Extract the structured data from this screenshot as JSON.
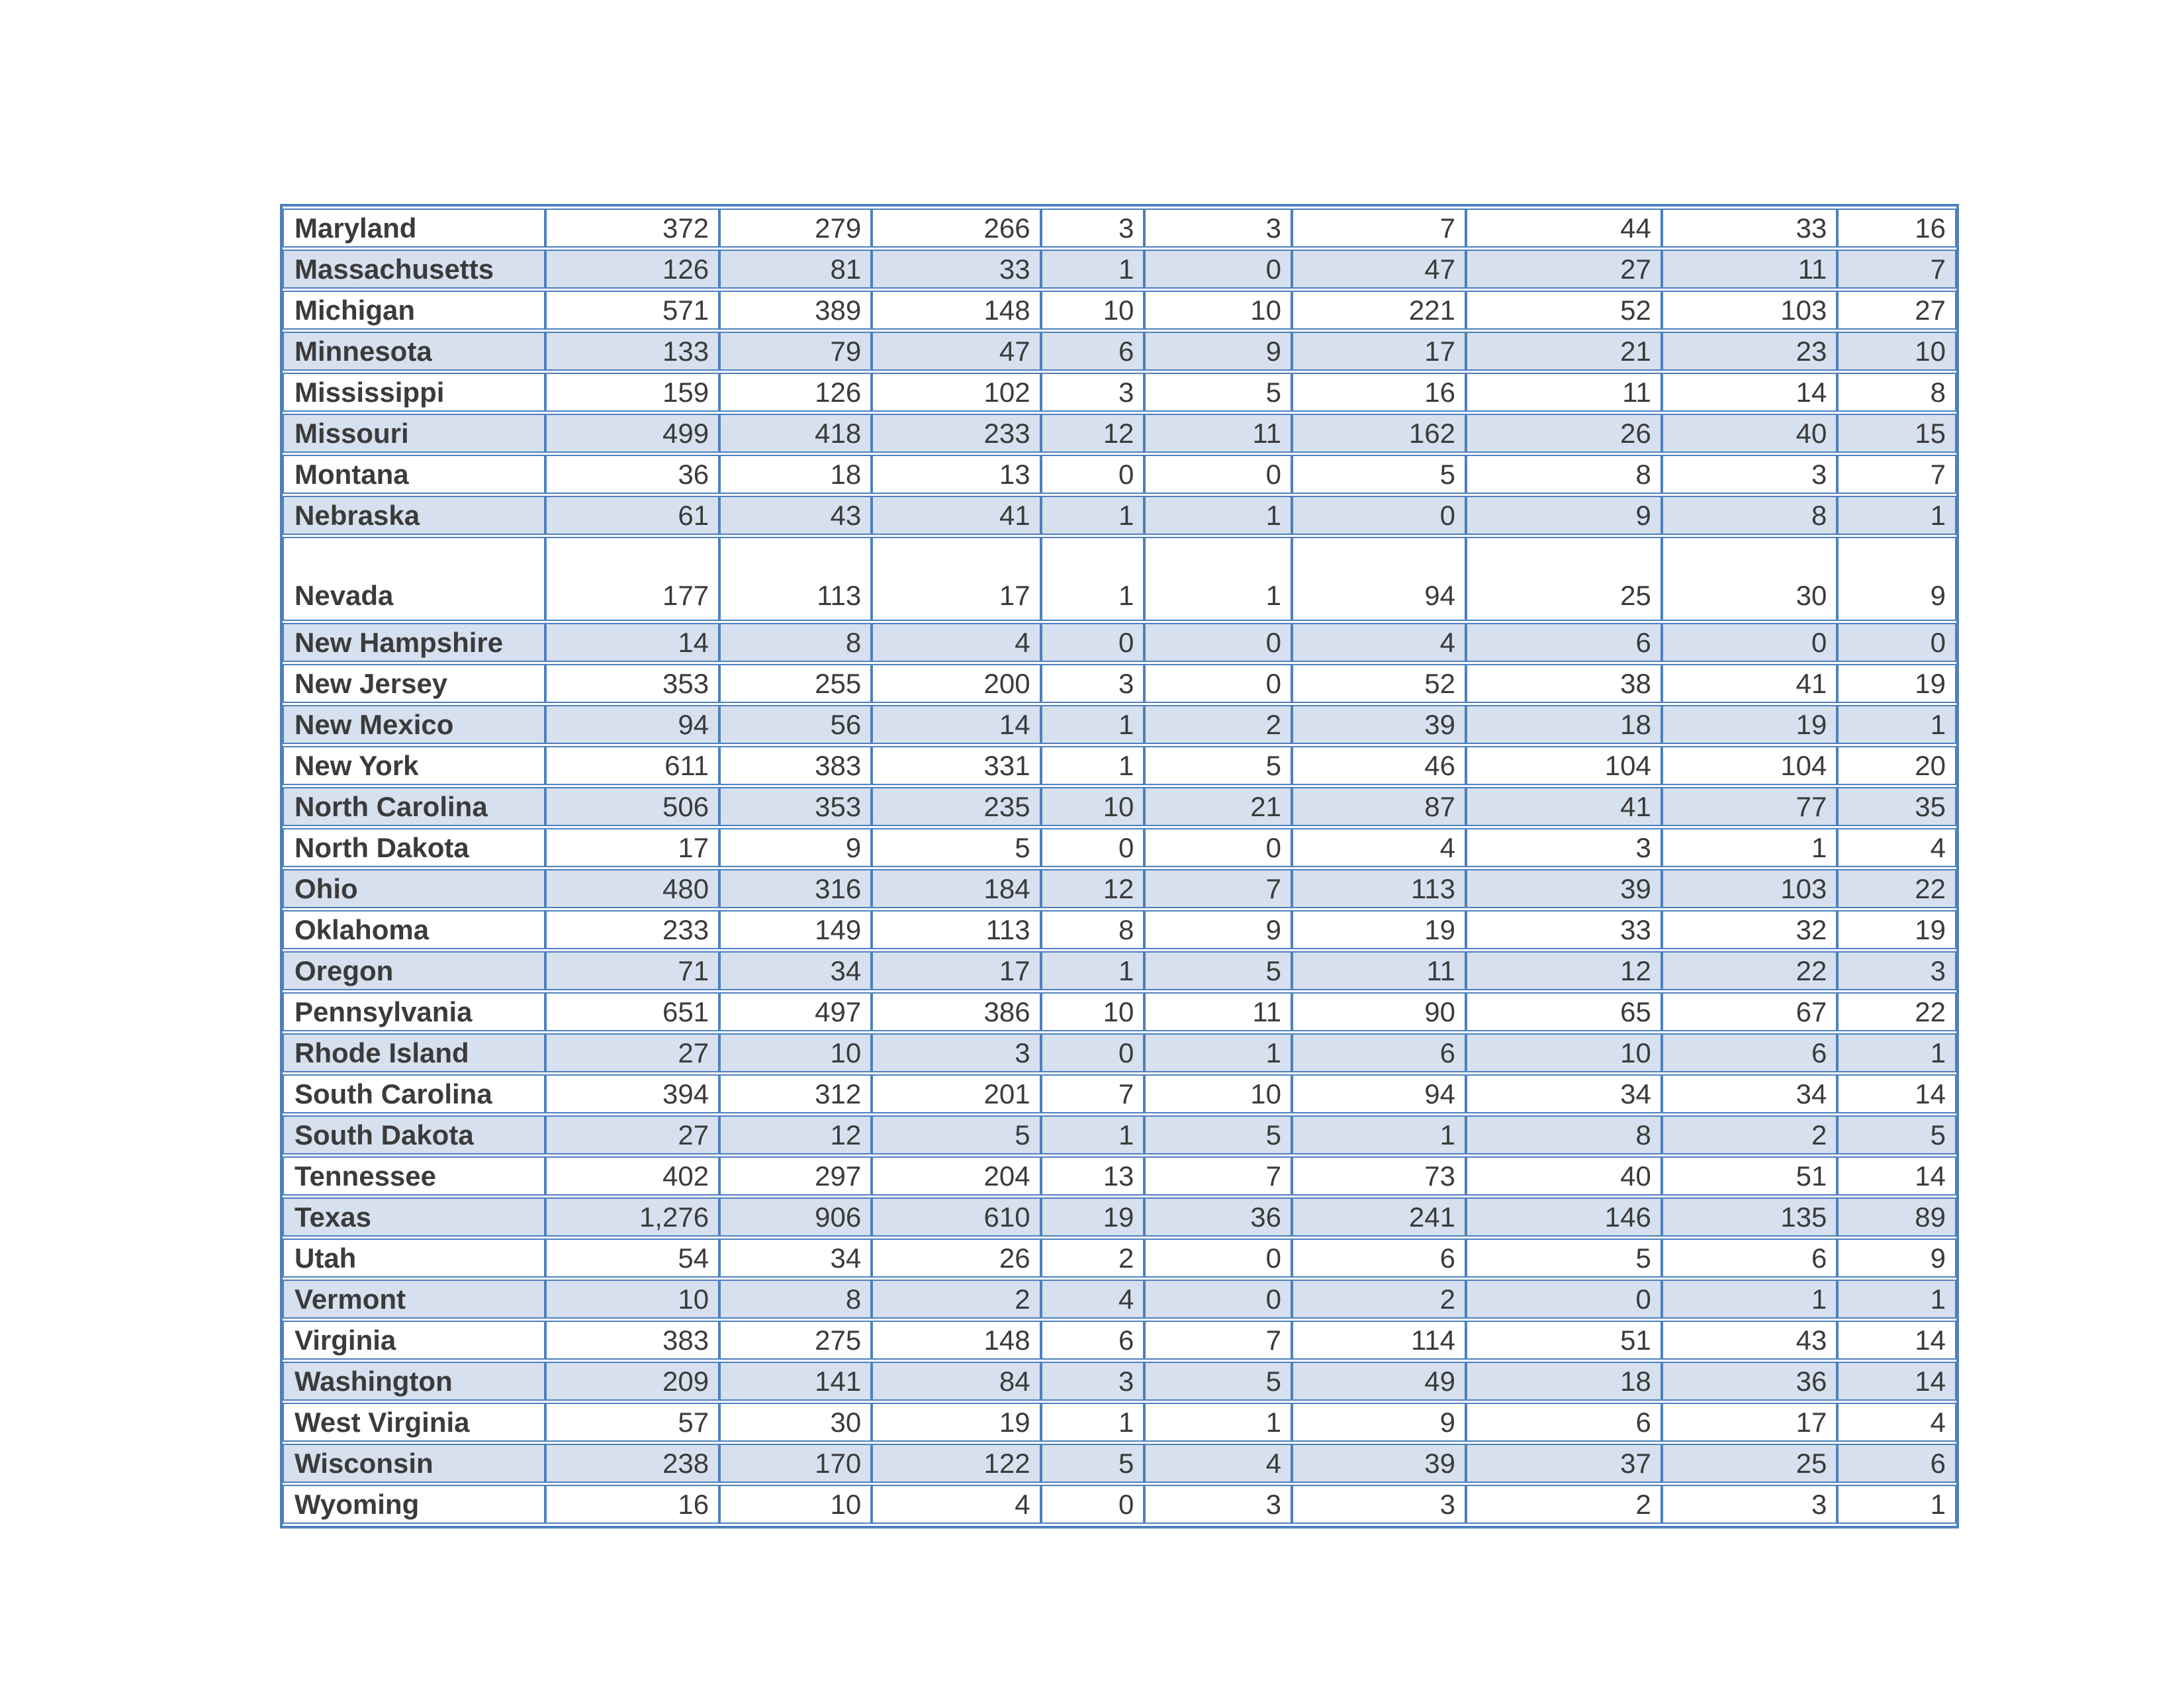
{
  "colors": {
    "border_blue": "#4e80be",
    "band_blue": "#d6e0ee",
    "row_white": "#ffffff",
    "text": "#3b3b3b"
  },
  "table": {
    "tall_row_state": "Nevada",
    "rows": [
      {
        "state": "Maryland",
        "values": [
          "372",
          "279",
          "266",
          "3",
          "3",
          "7",
          "44",
          "33",
          "16"
        ]
      },
      {
        "state": "Massachusetts",
        "values": [
          "126",
          "81",
          "33",
          "1",
          "0",
          "47",
          "27",
          "11",
          "7"
        ]
      },
      {
        "state": "Michigan",
        "values": [
          "571",
          "389",
          "148",
          "10",
          "10",
          "221",
          "52",
          "103",
          "27"
        ]
      },
      {
        "state": "Minnesota",
        "values": [
          "133",
          "79",
          "47",
          "6",
          "9",
          "17",
          "21",
          "23",
          "10"
        ]
      },
      {
        "state": "Mississippi",
        "values": [
          "159",
          "126",
          "102",
          "3",
          "5",
          "16",
          "11",
          "14",
          "8"
        ]
      },
      {
        "state": "Missouri",
        "values": [
          "499",
          "418",
          "233",
          "12",
          "11",
          "162",
          "26",
          "40",
          "15"
        ]
      },
      {
        "state": "Montana",
        "values": [
          "36",
          "18",
          "13",
          "0",
          "0",
          "5",
          "8",
          "3",
          "7"
        ]
      },
      {
        "state": "Nebraska",
        "values": [
          "61",
          "43",
          "41",
          "1",
          "1",
          "0",
          "9",
          "8",
          "1"
        ]
      },
      {
        "state": "Nevada",
        "values": [
          "177",
          "113",
          "17",
          "1",
          "1",
          "94",
          "25",
          "30",
          "9"
        ]
      },
      {
        "state": "New Hampshire",
        "values": [
          "14",
          "8",
          "4",
          "0",
          "0",
          "4",
          "6",
          "0",
          "0"
        ]
      },
      {
        "state": "New Jersey",
        "values": [
          "353",
          "255",
          "200",
          "3",
          "0",
          "52",
          "38",
          "41",
          "19"
        ]
      },
      {
        "state": "New Mexico",
        "values": [
          "94",
          "56",
          "14",
          "1",
          "2",
          "39",
          "18",
          "19",
          "1"
        ]
      },
      {
        "state": "New York",
        "values": [
          "611",
          "383",
          "331",
          "1",
          "5",
          "46",
          "104",
          "104",
          "20"
        ]
      },
      {
        "state": "North Carolina",
        "values": [
          "506",
          "353",
          "235",
          "10",
          "21",
          "87",
          "41",
          "77",
          "35"
        ]
      },
      {
        "state": "North Dakota",
        "values": [
          "17",
          "9",
          "5",
          "0",
          "0",
          "4",
          "3",
          "1",
          "4"
        ]
      },
      {
        "state": "Ohio",
        "values": [
          "480",
          "316",
          "184",
          "12",
          "7",
          "113",
          "39",
          "103",
          "22"
        ]
      },
      {
        "state": "Oklahoma",
        "values": [
          "233",
          "149",
          "113",
          "8",
          "9",
          "19",
          "33",
          "32",
          "19"
        ]
      },
      {
        "state": "Oregon",
        "values": [
          "71",
          "34",
          "17",
          "1",
          "5",
          "11",
          "12",
          "22",
          "3"
        ]
      },
      {
        "state": "Pennsylvania",
        "values": [
          "651",
          "497",
          "386",
          "10",
          "11",
          "90",
          "65",
          "67",
          "22"
        ]
      },
      {
        "state": "Rhode Island",
        "values": [
          "27",
          "10",
          "3",
          "0",
          "1",
          "6",
          "10",
          "6",
          "1"
        ]
      },
      {
        "state": "South Carolina",
        "values": [
          "394",
          "312",
          "201",
          "7",
          "10",
          "94",
          "34",
          "34",
          "14"
        ]
      },
      {
        "state": "South Dakota",
        "values": [
          "27",
          "12",
          "5",
          "1",
          "5",
          "1",
          "8",
          "2",
          "5"
        ]
      },
      {
        "state": "Tennessee",
        "values": [
          "402",
          "297",
          "204",
          "13",
          "7",
          "73",
          "40",
          "51",
          "14"
        ]
      },
      {
        "state": "Texas",
        "values": [
          "1,276",
          "906",
          "610",
          "19",
          "36",
          "241",
          "146",
          "135",
          "89"
        ]
      },
      {
        "state": "Utah",
        "values": [
          "54",
          "34",
          "26",
          "2",
          "0",
          "6",
          "5",
          "6",
          "9"
        ]
      },
      {
        "state": "Vermont",
        "values": [
          "10",
          "8",
          "2",
          "4",
          "0",
          "2",
          "0",
          "1",
          "1"
        ]
      },
      {
        "state": "Virginia",
        "values": [
          "383",
          "275",
          "148",
          "6",
          "7",
          "114",
          "51",
          "43",
          "14"
        ]
      },
      {
        "state": "Washington",
        "values": [
          "209",
          "141",
          "84",
          "3",
          "5",
          "49",
          "18",
          "36",
          "14"
        ]
      },
      {
        "state": "West Virginia",
        "values": [
          "57",
          "30",
          "19",
          "1",
          "1",
          "9",
          "6",
          "17",
          "4"
        ]
      },
      {
        "state": "Wisconsin",
        "values": [
          "238",
          "170",
          "122",
          "5",
          "4",
          "39",
          "37",
          "25",
          "6"
        ]
      },
      {
        "state": "Wyoming",
        "values": [
          "16",
          "10",
          "4",
          "0",
          "3",
          "3",
          "2",
          "3",
          "1"
        ]
      }
    ]
  }
}
